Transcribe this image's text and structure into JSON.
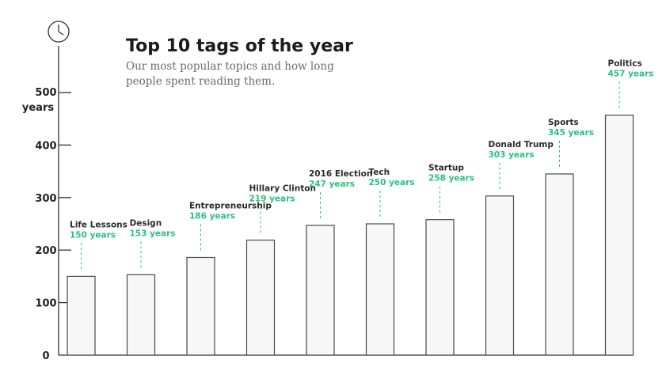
{
  "title": "Top 10 tags of the year",
  "subtitle_lines": [
    "Our most popular topics and how long",
    "people spent reading them."
  ],
  "icon": "clock-icon",
  "colors": {
    "accent": "#2bbf7e",
    "bar_fill": "#f7f7f7",
    "bar_stroke": "#4a4a4a",
    "text": "#1b1b1b"
  },
  "chart_data": {
    "type": "bar",
    "title": "Top 10 tags of the year",
    "subtitle": "Our most popular topics and how long people spent reading them.",
    "categories": [
      "Life Lessons",
      "Design",
      "Entrepreneurship",
      "Hillary Clinton",
      "2016 Election",
      "Tech",
      "Startup",
      "Donald Trump",
      "Sports",
      "Politics"
    ],
    "values": [
      150,
      153,
      186,
      219,
      247,
      250,
      258,
      303,
      345,
      457
    ],
    "value_labels": [
      "150 years",
      "153 years",
      "186 years",
      "219 years",
      "247 years",
      "250 years",
      "258 years",
      "303 years",
      "345 years",
      "457 years"
    ],
    "y_ticks": [
      "0",
      "100",
      "200",
      "300",
      "400",
      "500"
    ],
    "y_unit_label": "years",
    "ylim": [
      0,
      500
    ],
    "grid": false,
    "legend": "none"
  }
}
